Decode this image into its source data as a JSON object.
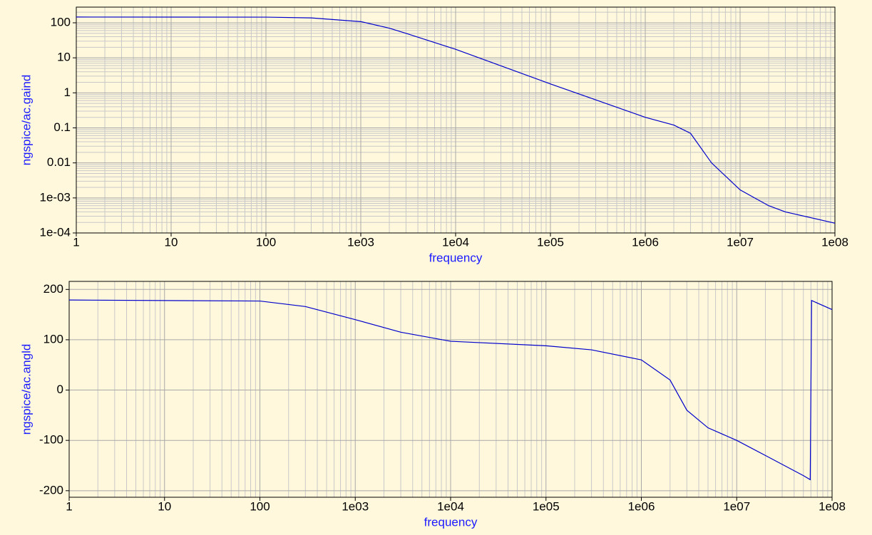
{
  "chart_data": [
    {
      "type": "line",
      "x_label": "frequency",
      "y_label": "ngspice/ac.gaind",
      "log_x": true,
      "log_y": true,
      "grid": true,
      "xlim": [
        1,
        100000000
      ],
      "ylim": [
        0.0001,
        280
      ],
      "xticks": [
        1,
        10,
        100,
        {
          "value": 1000,
          "label": "1e03"
        },
        {
          "value": 10000,
          "label": "1e04"
        },
        {
          "value": 100000,
          "label": "1e05"
        },
        {
          "value": 1000000,
          "label": "1e06"
        },
        {
          "value": 10000000,
          "label": "1e07"
        },
        {
          "value": 100000000,
          "label": "1e08"
        }
      ],
      "yticks": [
        100,
        10,
        1,
        0.1,
        0.01,
        {
          "value": 0.001,
          "label": "1e-03"
        },
        {
          "value": 0.0001,
          "label": "1e-04"
        }
      ],
      "x": [
        1,
        100,
        300,
        1000,
        2000,
        3000,
        10000,
        100000,
        1000000,
        2000000,
        3000000,
        5000000,
        10000000,
        20000000,
        30000000,
        100000000
      ],
      "series": [
        {
          "color": "#0000cc",
          "values": [
            146,
            145,
            138,
            108,
            70,
            50,
            17.5,
            1.8,
            0.2,
            0.12,
            0.07,
            0.01,
            0.0017,
            0.0006,
            0.0004,
            0.00019
          ]
        }
      ]
    },
    {
      "type": "line",
      "x_label": "frequency",
      "y_label": "ngspice/ac.angld",
      "log_x": true,
      "log_y": false,
      "grid": true,
      "xlim": [
        1,
        100000000
      ],
      "ylim": [
        -213,
        216
      ],
      "xticks": [
        1,
        10,
        100,
        {
          "value": 1000,
          "label": "1e03"
        },
        {
          "value": 10000,
          "label": "1e04"
        },
        {
          "value": 100000,
          "label": "1e05"
        },
        {
          "value": 1000000,
          "label": "1e06"
        },
        {
          "value": 10000000,
          "label": "1e07"
        },
        {
          "value": 100000000,
          "label": "1e08"
        }
      ],
      "yticks": [
        200,
        100,
        0,
        -100,
        -200
      ],
      "x": [
        1,
        100,
        300,
        1000,
        3000,
        10000,
        100000,
        300000,
        1000000,
        2000000,
        3000000,
        5000000,
        10000000,
        20000000,
        50000000,
        59000000,
        61000000,
        100000000
      ],
      "series": [
        {
          "color": "#0000cc",
          "values": [
            179,
            177,
            166,
            140,
            115,
            97,
            88,
            80,
            60,
            20,
            -40,
            -75,
            -100,
            -130,
            -170,
            -178,
            178,
            160
          ]
        }
      ]
    }
  ]
}
